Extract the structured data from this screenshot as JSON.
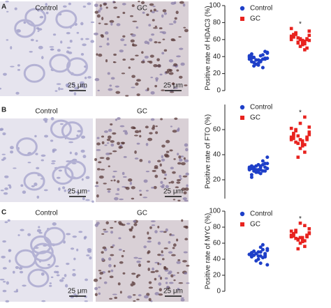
{
  "panels": [
    {
      "letter": "A",
      "images": [
        {
          "label": "Control",
          "scale_bar": "25 μm"
        },
        {
          "label": "GC",
          "scale_bar": "25 μm"
        }
      ]
    },
    {
      "letter": "B",
      "images": [
        {
          "label": "Control",
          "scale_bar": "25 μm"
        },
        {
          "label": "GC",
          "scale_bar": "25 μm"
        }
      ]
    },
    {
      "letter": "C",
      "images": [
        {
          "label": "Control",
          "scale_bar": "25 μm"
        },
        {
          "label": "GC",
          "scale_bar": "25 μm"
        }
      ]
    }
  ],
  "chart_data": [
    {
      "type": "beeswarm",
      "ylabel": "Positive rate of HDAC3 (%)",
      "ylim": [
        0,
        100
      ],
      "yticks": [
        0,
        20,
        40,
        60,
        80,
        100
      ],
      "annotation": "*",
      "legend": "upper left",
      "series": [
        {
          "name": "Control",
          "color": "#1e3fc8",
          "marker": "circle",
          "values": [
            37,
            35,
            40,
            42,
            33,
            38,
            36,
            44,
            30,
            39,
            41,
            34,
            37,
            29,
            46,
            36,
            38,
            32,
            40,
            35,
            43,
            27,
            39,
            37,
            31,
            45,
            36,
            41,
            34,
            38
          ]
        },
        {
          "name": "GC",
          "color": "#e8231f",
          "marker": "square",
          "values": [
            60,
            58,
            63,
            55,
            66,
            61,
            57,
            70,
            52,
            62,
            59,
            64,
            48,
            68,
            60,
            56,
            65,
            61,
            73,
            54,
            63,
            58,
            67,
            50,
            62,
            59,
            60,
            64,
            57,
            66
          ]
        }
      ]
    },
    {
      "type": "beeswarm",
      "ylabel": "Positive rate of FTO (%)",
      "ylim": [
        5,
        80
      ],
      "yticks": [
        20,
        40,
        60
      ],
      "annotation": "*",
      "legend": "upper left",
      "series": [
        {
          "name": "Control",
          "color": "#1e3fc8",
          "marker": "circle",
          "values": [
            29,
            28,
            31,
            27,
            30,
            33,
            26,
            29,
            32,
            28,
            30,
            24,
            35,
            29,
            27,
            31,
            38,
            28,
            30,
            25,
            29,
            32,
            27,
            30,
            28,
            33,
            26,
            29,
            31,
            22
          ]
        },
        {
          "name": "GC",
          "color": "#e8231f",
          "marker": "square",
          "values": [
            53,
            50,
            56,
            48,
            59,
            52,
            55,
            62,
            45,
            54,
            51,
            57,
            42,
            60,
            53,
            49,
            58,
            65,
            52,
            47,
            55,
            70,
            50,
            54,
            38,
            56,
            52,
            61,
            48,
            53
          ]
        }
      ]
    },
    {
      "type": "beeswarm",
      "ylabel": "Positive rate of MYC (%)",
      "ylim": [
        0,
        100
      ],
      "yticks": [
        0,
        20,
        40,
        60,
        80,
        100
      ],
      "annotation": "*",
      "legend": "upper left",
      "series": [
        {
          "name": "Control",
          "color": "#1e3fc8",
          "marker": "circle",
          "values": [
            46,
            44,
            48,
            42,
            50,
            45,
            47,
            53,
            40,
            46,
            49,
            43,
            58,
            45,
            47,
            38,
            51,
            44,
            46,
            35,
            48,
            52,
            45,
            43,
            47,
            33,
            49,
            46,
            55,
            44
          ]
        },
        {
          "name": "GC",
          "color": "#e8231f",
          "marker": "square",
          "values": [
            68,
            66,
            71,
            63,
            74,
            69,
            65,
            78,
            60,
            70,
            67,
            72,
            56,
            76,
            68,
            64,
            73,
            85,
            69,
            62,
            71,
            82,
            66,
            70,
            53,
            72,
            67,
            75,
            64,
            69
          ]
        }
      ]
    }
  ]
}
